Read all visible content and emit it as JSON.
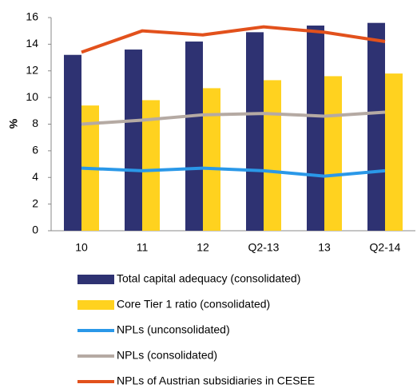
{
  "chart_data": {
    "type": "bar",
    "y_label": "%",
    "categories": [
      "10",
      "11",
      "12",
      "Q2-13",
      "13",
      "Q2-14"
    ],
    "series": [
      {
        "name": "Total capital adequacy (consolidated)",
        "type": "bar",
        "color": "#2e3272",
        "values": [
          13.2,
          13.6,
          14.2,
          14.9,
          15.4,
          15.6
        ]
      },
      {
        "name": "Core Tier 1 ratio (consolidated)",
        "type": "bar",
        "color": "#ffd21f",
        "values": [
          9.4,
          9.8,
          10.7,
          11.3,
          11.6,
          11.8
        ]
      },
      {
        "name": "NPLs (unconsolidated)",
        "type": "line",
        "color": "#2a98e8",
        "values": [
          4.7,
          4.5,
          4.7,
          4.5,
          4.1,
          4.5
        ]
      },
      {
        "name": "NPLs (consolidated)",
        "type": "line",
        "color": "#b5aaa3",
        "values": [
          8.0,
          8.3,
          8.7,
          8.8,
          8.6,
          8.9
        ]
      },
      {
        "name": "NPLs of Austrian subsidiaries in CESEE",
        "type": "line",
        "color": "#e2511c",
        "values": [
          13.4,
          15.0,
          14.7,
          15.3,
          14.9,
          14.2
        ]
      }
    ],
    "ylim": [
      0,
      16
    ],
    "yticks": [
      0,
      2,
      4,
      6,
      8,
      10,
      12,
      14,
      16
    ],
    "grid": false
  }
}
